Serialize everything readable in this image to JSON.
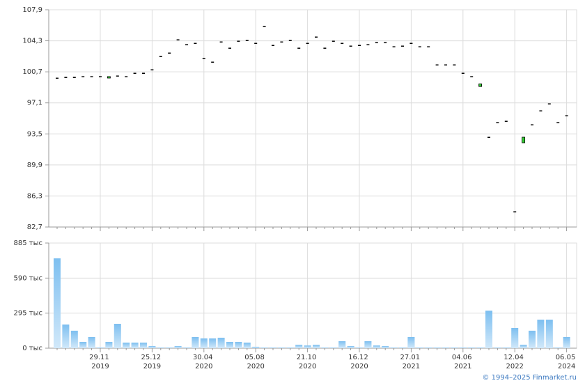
{
  "chart_data": [
    {
      "type": "candlestick",
      "open": [
        99.98,
        100.07,
        100.07,
        100.15,
        100.15,
        100.15,
        99.98,
        100.23,
        100.15,
        100.55,
        100.55,
        100.95,
        102.49,
        102.89,
        104.43,
        103.86,
        104.02,
        102.25,
        101.84,
        104.18,
        103.46,
        104.27,
        104.35,
        104.02,
        105.96,
        103.78,
        104.18,
        104.35,
        103.46,
        104.02,
        104.75,
        103.46,
        104.27,
        104.02,
        103.7,
        103.78,
        103.86,
        104.1,
        104.1,
        103.62,
        103.7,
        104.02,
        103.62,
        103.62,
        101.52,
        101.52,
        101.52,
        100.55,
        100.15,
        99.0,
        93.12,
        94.82,
        94.98,
        84.48,
        92.47,
        94.57,
        96.19,
        97.0,
        94.82,
        95.62
      ],
      "close": [
        99.98,
        100.07,
        100.07,
        100.15,
        100.15,
        100.15,
        100.15,
        100.23,
        100.15,
        100.55,
        100.55,
        100.95,
        102.49,
        102.89,
        104.43,
        103.86,
        104.02,
        102.25,
        101.84,
        104.18,
        103.46,
        104.27,
        104.35,
        104.02,
        105.96,
        103.78,
        104.18,
        104.35,
        103.46,
        104.02,
        104.75,
        103.46,
        104.27,
        104.02,
        103.7,
        103.78,
        103.86,
        104.1,
        104.1,
        103.62,
        103.7,
        104.02,
        103.62,
        103.62,
        101.52,
        101.52,
        101.52,
        100.55,
        100.15,
        99.3,
        93.12,
        94.82,
        94.98,
        84.48,
        93.12,
        94.57,
        96.19,
        97.0,
        94.82,
        95.62
      ],
      "up_color": "#33cc33",
      "color": "#000000",
      "ylim": [
        82.7,
        107.9
      ],
      "yticks": [
        {
          "value": 82.7,
          "label": "82,7"
        },
        {
          "value": 86.3,
          "label": "86,3"
        },
        {
          "value": 89.9,
          "label": "89,9"
        },
        {
          "value": 93.5,
          "label": "93,5"
        },
        {
          "value": 97.1,
          "label": "97,1"
        },
        {
          "value": 100.7,
          "label": "100,7"
        },
        {
          "value": 104.3,
          "label": "104,3"
        },
        {
          "value": 107.9,
          "label": "107,9"
        }
      ],
      "grid": true
    },
    {
      "type": "bar",
      "categories": [
        null,
        null,
        null,
        null,
        null,
        "29.11 2019",
        null,
        null,
        null,
        null,
        null,
        "25.12 2019",
        null,
        null,
        null,
        null,
        null,
        "30.04 2020",
        null,
        null,
        null,
        null,
        null,
        "05.08 2020",
        null,
        null,
        null,
        null,
        null,
        "21.10 2020",
        null,
        null,
        null,
        null,
        null,
        "16.12 2020",
        null,
        null,
        null,
        null,
        null,
        "27.01 2021",
        null,
        null,
        null,
        null,
        null,
        "04.06 2021",
        null,
        null,
        null,
        null,
        null,
        "12.04 2022",
        null,
        null,
        null,
        null,
        null,
        "06.05 2024"
      ],
      "values": [
        756,
        199,
        147,
        53,
        94,
        6,
        53,
        205,
        47,
        47,
        47,
        18,
        6,
        6,
        18,
        6,
        94,
        82,
        82,
        88,
        53,
        53,
        47,
        12,
        6,
        6,
        6,
        6,
        29,
        23,
        29,
        6,
        6,
        59,
        18,
        6,
        59,
        23,
        18,
        6,
        6,
        94,
        6,
        6,
        6,
        6,
        6,
        6,
        6,
        6,
        316,
        6,
        6,
        170,
        29,
        147,
        240,
        240,
        6,
        94
      ],
      "color": "#7dbff0",
      "ylim": [
        0,
        885
      ],
      "yticks": [
        {
          "value": 0,
          "label": "0 тыс"
        },
        {
          "value": 295,
          "label": "295 тыс"
        },
        {
          "value": 590,
          "label": "590 тыс"
        },
        {
          "value": 885,
          "label": "885 тыс"
        }
      ],
      "grid": true
    }
  ],
  "credit": "© 1994–2025 Finmarket.ru"
}
